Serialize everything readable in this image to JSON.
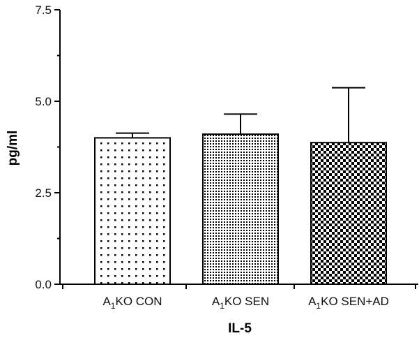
{
  "chart_data": {
    "type": "bar",
    "xlabel": "IL-5",
    "ylabel": "pg/ml",
    "ylim": [
      0,
      7.5
    ],
    "yticks": [
      0.0,
      2.5,
      5.0,
      7.5
    ],
    "ytick_labels": [
      "0.0",
      "2.5",
      "5.0",
      "7.5"
    ],
    "categories": [
      {
        "pre": "A",
        "sub": "1",
        "post": "KO CON"
      },
      {
        "pre": "A",
        "sub": "1",
        "post": "KO SEN"
      },
      {
        "pre": "A",
        "sub": "1",
        "post": "KO SEN+AD"
      }
    ],
    "values": [
      4.0,
      4.1,
      3.87
    ],
    "errors": [
      0.13,
      0.55,
      1.5
    ],
    "fill_patterns": [
      "sparse-dots",
      "dense-dots",
      "checkerboard"
    ],
    "grid": false,
    "legend": "none"
  }
}
